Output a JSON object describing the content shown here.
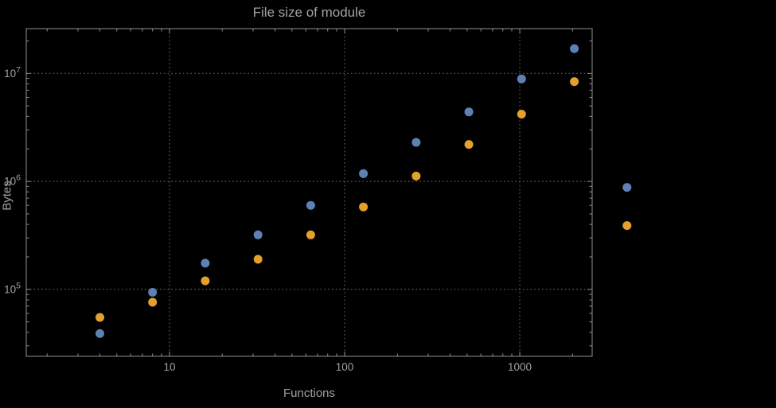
{
  "chart_data": {
    "type": "scatter",
    "title": "File size of module",
    "xlabel": "Functions",
    "ylabel": "Bytes",
    "x_scale": "log",
    "y_scale": "log",
    "x_range": [
      1.52,
      2590
    ],
    "y_range": [
      24000,
      26000000
    ],
    "grid": "dotted lines at decade ticks",
    "legend_position": "none",
    "x": [
      4,
      8,
      16,
      32,
      64,
      128,
      256,
      512,
      1024,
      2048,
      4096
    ],
    "series": [
      {
        "name": "blue-series",
        "color": "#5e81b5",
        "values": [
          39000,
          94000,
          175000,
          320000,
          600000,
          1180000,
          2300000,
          4400000,
          8900000,
          17000000,
          880000
        ]
      },
      {
        "name": "orange-series",
        "color": "#e3a02d",
        "values": [
          55000,
          76000,
          120000,
          190000,
          320000,
          580000,
          1120000,
          2200000,
          4200000,
          8400000,
          390000
        ]
      }
    ],
    "x_ticks": [
      {
        "value": 10,
        "label": "10"
      },
      {
        "value": 100,
        "label": "100"
      },
      {
        "value": 1000,
        "label": "1000"
      }
    ],
    "y_ticks": [
      {
        "value": 100000,
        "base": "10",
        "exp": "5"
      },
      {
        "value": 1000000,
        "base": "10",
        "exp": "6"
      },
      {
        "value": 10000000,
        "base": "10",
        "exp": "7"
      }
    ]
  },
  "style": {
    "background": "#000000",
    "frame_color": "#8f8f8f",
    "grid_color": "#5f5f5f",
    "text_color": "#a2a2a2",
    "marker_radius": 5.5
  }
}
